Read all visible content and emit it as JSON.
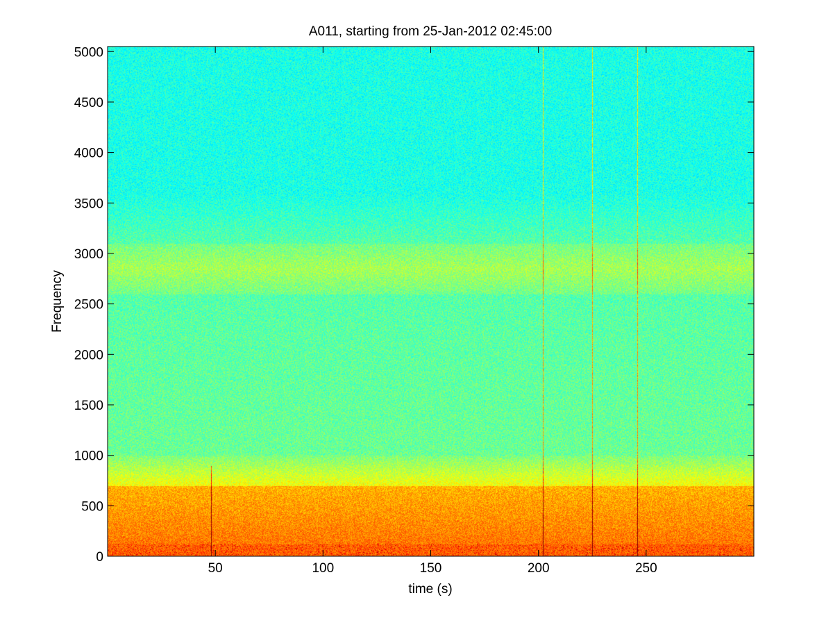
{
  "chart_data": {
    "type": "heatmap",
    "title": "A011, starting from 25-Jan-2012 02:45:00",
    "xlabel": "time (s)",
    "ylabel": "Frequency",
    "xlim": [
      0,
      300
    ],
    "ylim": [
      0,
      5050
    ],
    "x_ticks": [
      50,
      100,
      150,
      200,
      250
    ],
    "y_ticks": [
      0,
      500,
      1000,
      1500,
      2000,
      2500,
      3000,
      3500,
      4000,
      4500,
      5000
    ],
    "grid": false,
    "colormap": "jet",
    "description_bands": [
      {
        "from_hz": 3600,
        "to_hz": 5050,
        "level": "cyan"
      },
      {
        "from_hz": 2600,
        "to_hz": 3100,
        "level": "yellow-green"
      },
      {
        "from_hz": 700,
        "to_hz": 1000,
        "level": "yellow"
      },
      {
        "from_hz": 100,
        "to_hz": 700,
        "level": "orange"
      },
      {
        "from_hz": 0,
        "to_hz": 100,
        "level": "red"
      }
    ],
    "transient_lines_time_s": [
      48,
      202,
      225,
      246
    ]
  },
  "colors": {
    "axes": "#000000",
    "background": "#ffffff"
  }
}
